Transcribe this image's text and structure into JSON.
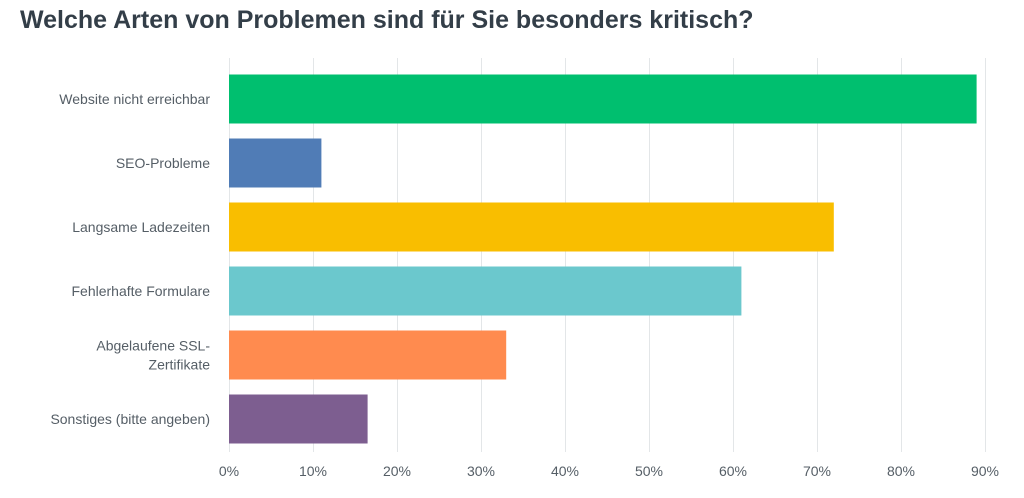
{
  "chart_data": {
    "type": "bar",
    "orientation": "horizontal",
    "title": "Welche Arten von Problemen sind für Sie besonders kritisch?",
    "categories": [
      [
        "Website nicht erreichbar"
      ],
      [
        "SEO-Probleme"
      ],
      [
        "Langsame Ladezeiten"
      ],
      [
        "Fehlerhafte Formulare"
      ],
      [
        "Abgelaufene SSL-",
        "Zertifikate"
      ],
      [
        "Sonstiges (bitte angeben)"
      ]
    ],
    "values": [
      89,
      11,
      72,
      61,
      33,
      16.5
    ],
    "value_unit": "%",
    "colors": [
      "#00bf6f",
      "#507cb6",
      "#f9be00",
      "#6bc8cd",
      "#ff8b4f",
      "#7d5e90"
    ],
    "xlim": [
      0,
      90
    ],
    "xticks": [
      0,
      10,
      20,
      30,
      40,
      50,
      60,
      70,
      80,
      90
    ],
    "xtick_labels": [
      "0%",
      "10%",
      "20%",
      "30%",
      "40%",
      "50%",
      "60%",
      "70%",
      "80%",
      "90%"
    ],
    "grid": true,
    "legend": "none"
  }
}
